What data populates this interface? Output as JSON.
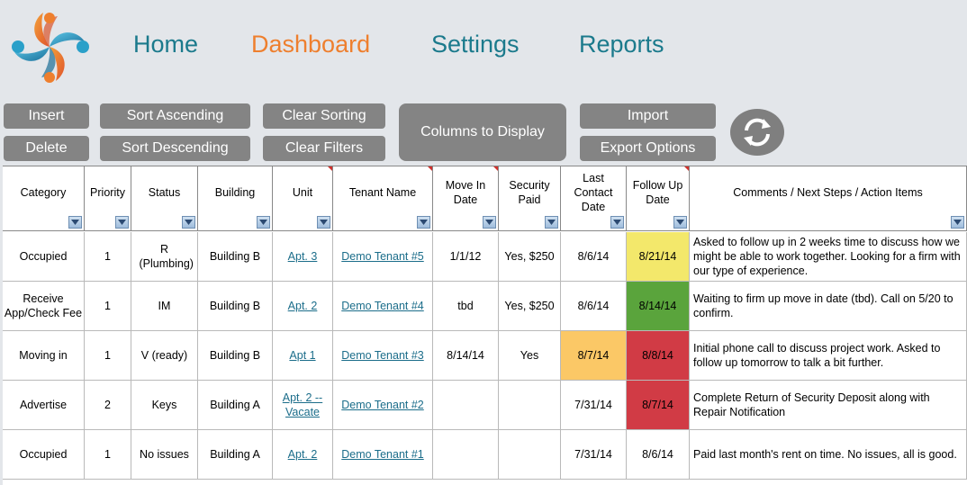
{
  "nav": {
    "home": "Home",
    "dashboard": "Dashboard",
    "settings": "Settings",
    "reports": "Reports"
  },
  "toolbar": {
    "insert": "Insert",
    "delete": "Delete",
    "sort_ascending": "Sort Ascending",
    "sort_descending": "Sort Descending",
    "clear_sorting": "Clear Sorting",
    "clear_filters": "Clear Filters",
    "columns_to_display": "Columns to Display",
    "import": "Import",
    "export_options": "Export Options",
    "refresh_icon": "refresh-icon"
  },
  "colors": {
    "nav_teal": "#1b7a8c",
    "nav_active_orange": "#ee7f2e",
    "button_gray": "#848484",
    "status_yellow": "#f3e86b",
    "status_green": "#5aa43c",
    "status_orange": "#fbc866",
    "status_red": "#d13b45",
    "link_teal": "#1b6d8a"
  },
  "table": {
    "headers": {
      "category": "Category",
      "priority": "Priority",
      "status": "Status",
      "building": "Building",
      "unit": "Unit",
      "tenant_name": "Tenant Name",
      "move_in_date": "Move In Date",
      "security_paid": "Security Paid",
      "last_contact_date": "Last Contact Date",
      "follow_up_date": "Follow Up Date",
      "comments": "Comments / Next Steps / Action Items"
    },
    "rows": [
      {
        "category": "Occupied",
        "priority": "1",
        "status": "R (Plumbing)",
        "building": "Building B",
        "unit": "Apt. 3",
        "tenant": "Demo Tenant #5",
        "move_in": "1/1/12",
        "security": "Yes, $250",
        "last_contact": "8/6/14",
        "follow_up": "8/21/14",
        "follow_up_color": "yellow",
        "comments": "Asked to follow up in 2 weeks time to discuss how we might be able to work together. Looking for a firm with our type of experience."
      },
      {
        "category": "Receive App/Check Fee",
        "priority": "1",
        "status": "IM",
        "building": "Building B",
        "unit": "Apt. 2",
        "tenant": "Demo Tenant #4",
        "move_in": "tbd",
        "security": "Yes, $250",
        "last_contact": "8/6/14",
        "follow_up": "8/14/14",
        "follow_up_color": "green",
        "comments": "Waiting to firm up move in date (tbd). Call on 5/20 to confirm."
      },
      {
        "category": "Moving in",
        "priority": "1",
        "status": "V (ready)",
        "building": "Building B",
        "unit": "Apt 1",
        "tenant": "Demo Tenant #3",
        "move_in": "8/14/14",
        "security": "Yes",
        "last_contact": "8/7/14",
        "last_contact_color": "orange",
        "follow_up": "8/8/14",
        "follow_up_color": "red",
        "comments": "Initial phone call to discuss project work. Asked to follow up tomorrow to talk a bit further."
      },
      {
        "category": "Advertise",
        "priority": "2",
        "status": "Keys",
        "building": "Building A",
        "unit": "Apt. 2 -- Vacate",
        "tenant": "Demo Tenant #2",
        "move_in": "",
        "security": "",
        "last_contact": "7/31/14",
        "follow_up": "8/7/14",
        "follow_up_color": "red",
        "comments": "Complete Return of Security Deposit along with Repair Notification"
      },
      {
        "category": "Occupied",
        "priority": "1",
        "status": "No issues",
        "building": "Building A",
        "unit": "Apt. 2",
        "tenant": "Demo Tenant #1",
        "move_in": "",
        "security": "",
        "last_contact": "7/31/14",
        "follow_up": "8/6/14",
        "follow_up_color": "",
        "comments": "Paid last month's rent on time. No issues, all is good."
      }
    ]
  }
}
